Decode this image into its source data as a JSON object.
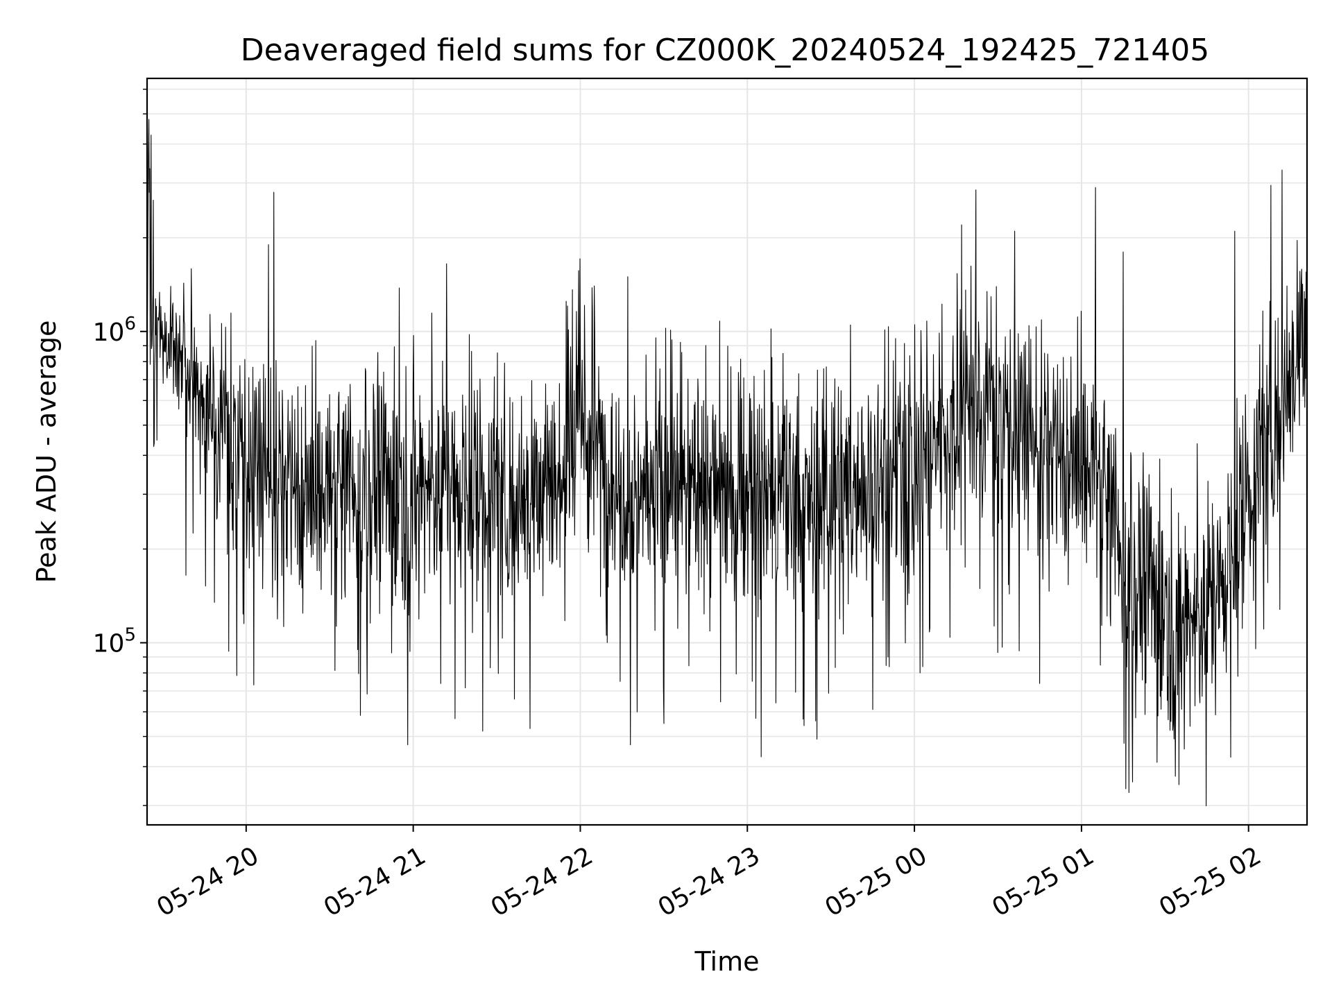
{
  "chart_data": {
    "type": "line",
    "title": "Deaveraged field sums for CZ000K_20240524_192425_721405",
    "xlabel": "Time",
    "ylabel": "Peak ADU - average",
    "yscale": "log",
    "ylim": [
      26000,
      6500000
    ],
    "xlim": [
      "2024-05-24 19:24:25",
      "2024-05-25 02:21:00"
    ],
    "grid": true,
    "x_ticks": [
      "05-24 20",
      "05-24 21",
      "05-24 22",
      "05-24 23",
      "05-25 00",
      "05-25 01",
      "05-25 02"
    ],
    "y_ticks": [
      {
        "value": 100000,
        "base": "10",
        "exp": "5"
      },
      {
        "value": 1000000,
        "base": "10",
        "exp": "6"
      }
    ],
    "series": [
      {
        "color": "#000000",
        "x": [
          "2024-05-24 19:24:25",
          "2024-05-24 19:25:00",
          "2024-05-24 19:26:00",
          "2024-05-24 19:30:00",
          "2024-05-24 19:35:00",
          "2024-05-24 19:40:00",
          "2024-05-24 19:45:00",
          "2024-05-24 19:50:00",
          "2024-05-24 19:55:00",
          "2024-05-24 20:00:00",
          "2024-05-24 20:05:00",
          "2024-05-24 20:10:00",
          "2024-05-24 20:15:00",
          "2024-05-24 20:20:00",
          "2024-05-24 20:30:00",
          "2024-05-24 20:40:00",
          "2024-05-24 20:50:00",
          "2024-05-24 21:00:00",
          "2024-05-24 21:10:00",
          "2024-05-24 21:20:00",
          "2024-05-24 21:30:00",
          "2024-05-24 21:40:00",
          "2024-05-24 21:50:00",
          "2024-05-24 21:55:00",
          "2024-05-24 22:00:00",
          "2024-05-24 22:10:00",
          "2024-05-24 22:20:00",
          "2024-05-24 22:30:00",
          "2024-05-24 22:40:00",
          "2024-05-24 22:50:00",
          "2024-05-24 23:00:00",
          "2024-05-24 23:10:00",
          "2024-05-24 23:20:00",
          "2024-05-24 23:30:00",
          "2024-05-24 23:40:00",
          "2024-05-24 23:50:00",
          "2024-05-25 00:00:00",
          "2024-05-25 00:10:00",
          "2024-05-25 00:20:00",
          "2024-05-25 00:30:00",
          "2024-05-25 00:40:00",
          "2024-05-25 00:50:00",
          "2024-05-25 01:00:00",
          "2024-05-25 01:05:00",
          "2024-05-25 01:10:00",
          "2024-05-25 01:20:00",
          "2024-05-25 01:30:00",
          "2024-05-25 01:40:00",
          "2024-05-25 01:50:00",
          "2024-05-25 02:00:00",
          "2024-05-25 02:10:00",
          "2024-05-25 02:21:00"
        ],
        "values": [
          1000000,
          4800000,
          1000000,
          1050000,
          900000,
          750000,
          600000,
          500000,
          450000,
          420000,
          380000,
          320000,
          300000,
          300000,
          280000,
          320000,
          300000,
          320000,
          330000,
          320000,
          300000,
          310000,
          320000,
          350000,
          500000,
          350000,
          320000,
          300000,
          310000,
          320000,
          300000,
          290000,
          270000,
          300000,
          320000,
          340000,
          350000,
          500000,
          600000,
          550000,
          500000,
          380000,
          360000,
          330000,
          250000,
          150000,
          130000,
          120000,
          150000,
          300000,
          550000,
          1100000
        ]
      }
    ],
    "annotations": [
      {
        "x": "2024-05-24 19:25:00",
        "value": 4800000
      },
      {
        "x": "2024-05-24 19:55:00",
        "value": 230000
      },
      {
        "x": "2024-05-24 20:10:00",
        "value": 2800000
      },
      {
        "x": "2024-05-24 20:08:00",
        "value": 1900000
      },
      {
        "x": "2024-05-24 20:20:00",
        "value": 150000
      },
      {
        "x": "2024-05-24 20:40:00",
        "value": 95000
      },
      {
        "x": "2024-05-24 20:55:00",
        "value": 1380000
      },
      {
        "x": "2024-05-24 20:58:00",
        "value": 47000
      },
      {
        "x": "2024-05-24 21:12:00",
        "value": 1650000
      },
      {
        "x": "2024-05-24 21:15:00",
        "value": 57000
      },
      {
        "x": "2024-05-24 21:25:00",
        "value": 52000
      },
      {
        "x": "2024-05-24 21:42:00",
        "value": 53000
      },
      {
        "x": "2024-05-24 21:55:00",
        "value": 1250000
      },
      {
        "x": "2024-05-24 22:05:00",
        "value": 1400000
      },
      {
        "x": "2024-05-24 22:17:00",
        "value": 1500000
      },
      {
        "x": "2024-05-24 22:18:00",
        "value": 47000
      },
      {
        "x": "2024-05-24 22:30:00",
        "value": 55000
      },
      {
        "x": "2024-05-24 22:50:00",
        "value": 1080000
      },
      {
        "x": "2024-05-24 23:05:00",
        "value": 43000
      },
      {
        "x": "2024-05-24 23:25:00",
        "value": 49000
      },
      {
        "x": "2024-05-24 23:45:00",
        "value": 61000
      },
      {
        "x": "2024-05-25 00:02:00",
        "value": 80000
      },
      {
        "x": "2024-05-25 00:17:00",
        "value": 2200000
      },
      {
        "x": "2024-05-25 00:22:00",
        "value": 2850000
      },
      {
        "x": "2024-05-25 00:30:00",
        "value": 93000
      },
      {
        "x": "2024-05-25 00:36:00",
        "value": 2100000
      },
      {
        "x": "2024-05-25 00:45:00",
        "value": 74000
      },
      {
        "x": "2024-05-25 01:05:00",
        "value": 2900000
      },
      {
        "x": "2024-05-25 01:15:00",
        "value": 1800000
      },
      {
        "x": "2024-05-25 01:17:00",
        "value": 33000
      },
      {
        "x": "2024-05-25 01:35:00",
        "value": 35000
      },
      {
        "x": "2024-05-25 01:55:00",
        "value": 2100000
      },
      {
        "x": "2024-05-25 02:08:00",
        "value": 2950000
      },
      {
        "x": "2024-05-25 02:12:00",
        "value": 3300000
      }
    ]
  }
}
